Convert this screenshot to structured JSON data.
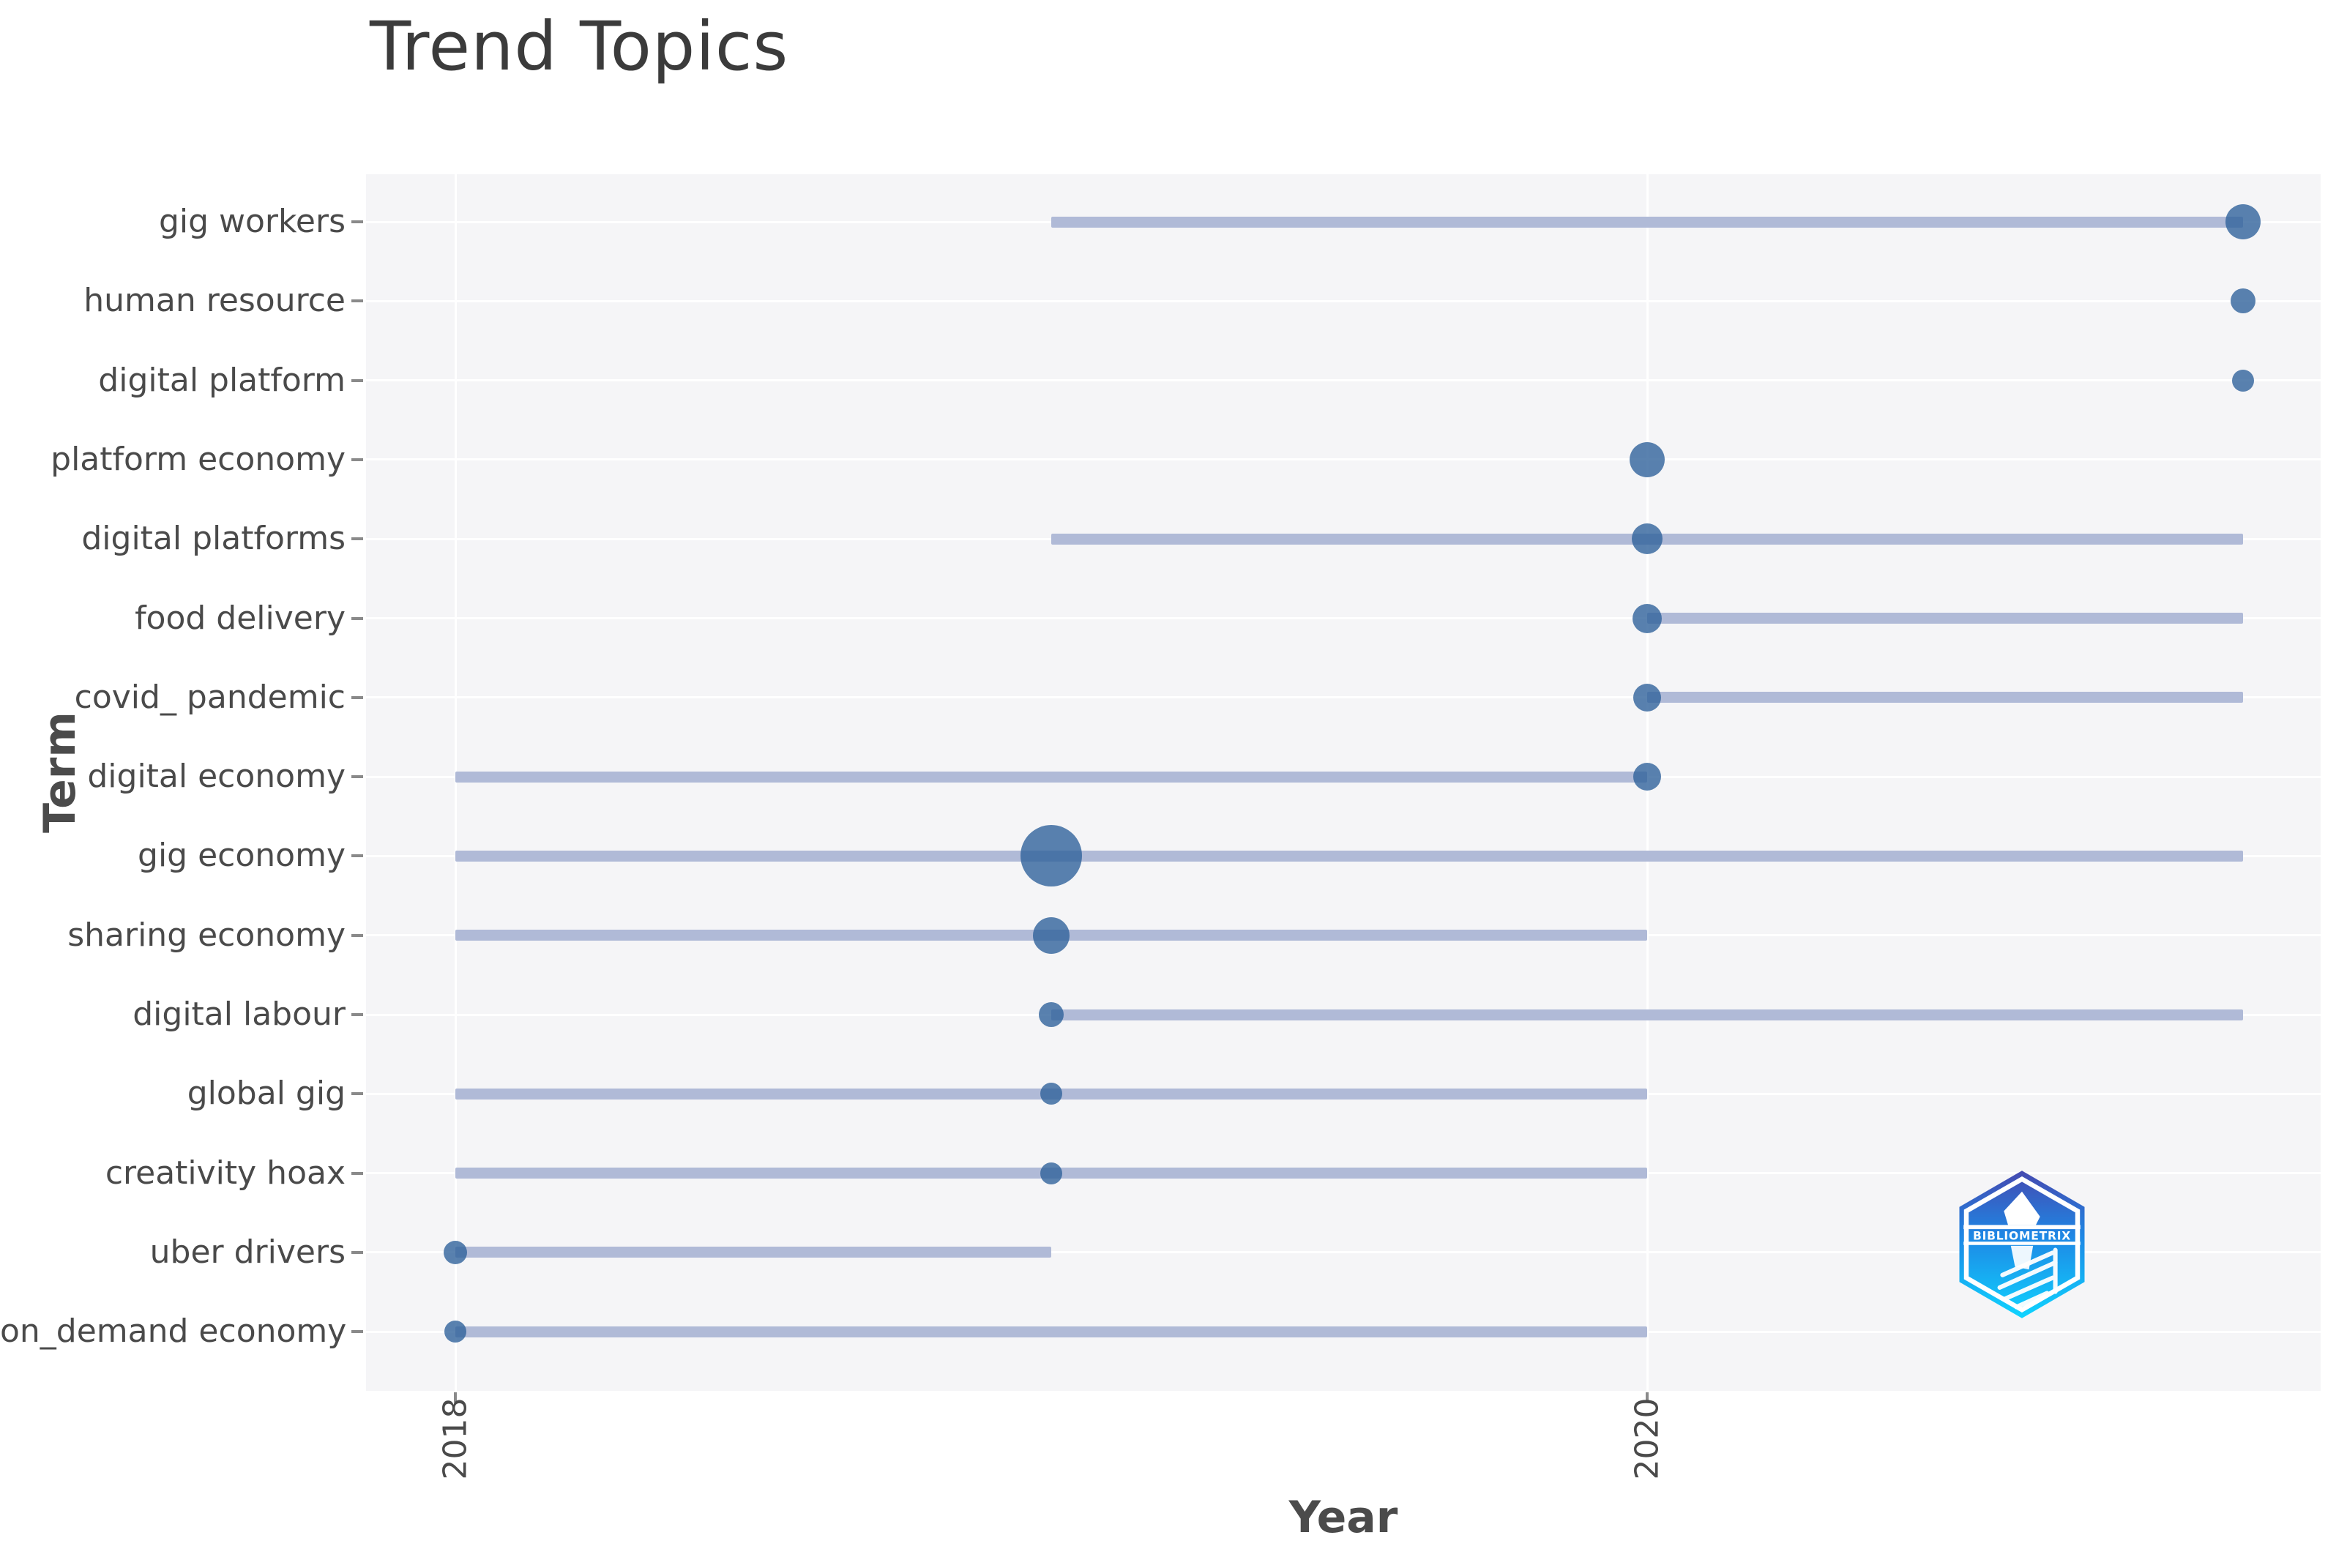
{
  "chart": {
    "title": "Trend Topics",
    "x_axis": {
      "label": "Year",
      "ticks": [
        "2018",
        "2020"
      ]
    },
    "y_axis": {
      "label": "Term"
    },
    "colors": {
      "dot": "#31639b",
      "dot_rendered": "#5a82af",
      "line": "#b0bad7",
      "panel_background": "#f5f5f7",
      "gridline": "#ffffff",
      "title_text": "#3b3b3b",
      "label_text": "#4a4a4a"
    },
    "logo": {
      "name": "bibliometrix-logo",
      "text": "BIBLIOMETRIX"
    }
  },
  "chart_data": {
    "type": "scatter",
    "title": "Trend Topics",
    "xlabel": "Year",
    "ylabel": "Term",
    "x_ticks": [
      2018,
      2020
    ],
    "xlim": [
      2017.85,
      2021.13
    ],
    "grid": true,
    "legend": false,
    "description": "Bibliometrix-style Trend Topics plot: each term has a horizontal line spanning first-quartile to third-quartile year and a bubble at its peak (median) year; bubble radius encodes term frequency.",
    "terms": [
      {
        "term": "gig workers",
        "year_start": 2019,
        "year_peak": 2021,
        "year_end": 2021,
        "bubble_radius_px": 24
      },
      {
        "term": "human resource",
        "year_start": 2021,
        "year_peak": 2021,
        "year_end": 2021,
        "bubble_radius_px": 17
      },
      {
        "term": "digital platform",
        "year_start": 2021,
        "year_peak": 2021,
        "year_end": 2021,
        "bubble_radius_px": 15
      },
      {
        "term": "platform economy",
        "year_start": 2020,
        "year_peak": 2020,
        "year_end": 2020,
        "bubble_radius_px": 24
      },
      {
        "term": "digital platforms",
        "year_start": 2019,
        "year_peak": 2020,
        "year_end": 2021,
        "bubble_radius_px": 21
      },
      {
        "term": "food delivery",
        "year_start": 2020,
        "year_peak": 2020,
        "year_end": 2021,
        "bubble_radius_px": 20
      },
      {
        "term": "covid_ pandemic",
        "year_start": 2020,
        "year_peak": 2020,
        "year_end": 2021,
        "bubble_radius_px": 19
      },
      {
        "term": "digital economy",
        "year_start": 2018,
        "year_peak": 2020,
        "year_end": 2020,
        "bubble_radius_px": 19
      },
      {
        "term": "gig economy",
        "year_start": 2018,
        "year_peak": 2019,
        "year_end": 2021,
        "bubble_radius_px": 42
      },
      {
        "term": "sharing economy",
        "year_start": 2018,
        "year_peak": 2019,
        "year_end": 2020,
        "bubble_radius_px": 25
      },
      {
        "term": "digital labour",
        "year_start": 2019,
        "year_peak": 2019,
        "year_end": 2021,
        "bubble_radius_px": 17
      },
      {
        "term": "global gig",
        "year_start": 2018,
        "year_peak": 2019,
        "year_end": 2020,
        "bubble_radius_px": 15
      },
      {
        "term": "creativity hoax",
        "year_start": 2018,
        "year_peak": 2019,
        "year_end": 2020,
        "bubble_radius_px": 15
      },
      {
        "term": "uber drivers",
        "year_start": 2018,
        "year_peak": 2018,
        "year_end": 2019,
        "bubble_radius_px": 16
      },
      {
        "term": "on_demand economy",
        "year_start": 2018,
        "year_peak": 2018,
        "year_end": 2020,
        "bubble_radius_px": 15
      }
    ]
  }
}
